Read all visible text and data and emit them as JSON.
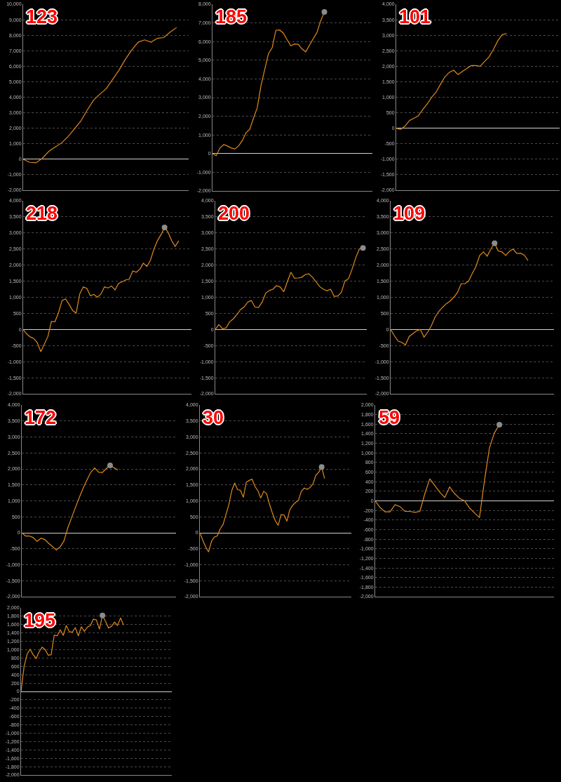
{
  "chart_data": [
    {
      "type": "line",
      "title": "123",
      "grid": "y",
      "tick_labels": "y",
      "ylim": [
        -2000,
        10000
      ],
      "yticks": [
        {
          "value": -2000,
          "label": "-2,000"
        },
        {
          "value": -1000,
          "label": "-1,000"
        },
        0,
        {
          "value": 1000,
          "label": "1,000"
        },
        {
          "value": 2000,
          "label": "2,000"
        },
        {
          "value": 3000,
          "label": "3,000"
        },
        {
          "value": 4000,
          "label": "4,000"
        },
        {
          "value": 5000,
          "label": "5,000"
        },
        {
          "value": 6000,
          "label": "6,000"
        },
        {
          "value": 7000,
          "label": "7,000"
        },
        {
          "value": 8000,
          "label": "8,000"
        },
        {
          "value": 9000,
          "label": "9,000"
        },
        {
          "value": 10000,
          "label": "10,000"
        }
      ],
      "categories": [
        null,
        null,
        null,
        null,
        null,
        null,
        null,
        null,
        null,
        null,
        null,
        null,
        null,
        null,
        null,
        null,
        null,
        null,
        null,
        null,
        null,
        null,
        null,
        null,
        null,
        null,
        null
      ],
      "series": [
        {
          "color": "#e08a1e",
          "values": [
            0,
            -200,
            -230,
            60,
            500,
            780,
            1050,
            1450,
            1950,
            2450,
            3150,
            3800,
            4200,
            4550,
            5150,
            5750,
            6450,
            7050,
            7550,
            7700,
            7550,
            7800,
            7850,
            8200,
            8500,
            null,
            null
          ]
        }
      ]
    },
    {
      "type": "line",
      "title": "185",
      "grid": "y",
      "tick_labels": "y",
      "ylim": [
        -2000,
        8000
      ],
      "yticks": [
        {
          "value": -2000,
          "label": "-2,000"
        },
        {
          "value": -1000,
          "label": "-1,000"
        },
        0,
        {
          "value": 1000,
          "label": "1,000"
        },
        {
          "value": 2000,
          "label": "2,000"
        },
        {
          "value": 3000,
          "label": "3,000"
        },
        {
          "value": 4000,
          "label": "4,000"
        },
        {
          "value": 5000,
          "label": "5,000"
        },
        {
          "value": 6000,
          "label": "6,000"
        },
        {
          "value": 7000,
          "label": "7,000"
        },
        {
          "value": 8000,
          "label": "8,000"
        }
      ],
      "categories": [
        null,
        null,
        null,
        null,
        null,
        null,
        null,
        null,
        null,
        null,
        null,
        null,
        null,
        null,
        null,
        null,
        null,
        null,
        null,
        null,
        null,
        null,
        null,
        null,
        null,
        null,
        null,
        null,
        null,
        null,
        null,
        null,
        null,
        null,
        null,
        null,
        null,
        null,
        null,
        null,
        null,
        null,
        null,
        null,
        null
      ],
      "series": [
        {
          "color": "#e08a1e",
          "values": [
            0,
            -110,
            300,
            480,
            410,
            300,
            250,
            410,
            700,
            1120,
            1300,
            1900,
            2450,
            3630,
            4500,
            5350,
            5670,
            6600,
            6620,
            6450,
            6100,
            5770,
            5870,
            5850,
            5600,
            5450,
            5800,
            6150,
            6480,
            7100,
            7590,
            null,
            null,
            null,
            null,
            null,
            null,
            null,
            null,
            null,
            null,
            null,
            null,
            null,
            null
          ]
        },
        {
          "type": "scatter",
          "color": "#8c8c8c",
          "values": [
            null,
            null,
            null,
            null,
            null,
            null,
            null,
            null,
            null,
            null,
            null,
            null,
            null,
            null,
            null,
            null,
            null,
            null,
            null,
            null,
            null,
            null,
            null,
            null,
            null,
            null,
            null,
            null,
            null,
            null,
            7590,
            null,
            null,
            null,
            null,
            null,
            null,
            null,
            null,
            null,
            null,
            null,
            null,
            null,
            null
          ]
        }
      ]
    },
    {
      "type": "line",
      "title": "101",
      "grid": "y",
      "tick_labels": "y",
      "ylim": [
        -2000,
        4000
      ],
      "yticks": [
        {
          "value": -2000,
          "label": "-2,000"
        },
        {
          "value": -1500,
          "label": "-1,500"
        },
        {
          "value": -1000,
          "label": "-1,000"
        },
        -500,
        0,
        500,
        {
          "value": 1000,
          "label": "1,000"
        },
        {
          "value": 1500,
          "label": "1,500"
        },
        {
          "value": 2000,
          "label": "2,000"
        },
        {
          "value": 2500,
          "label": "2,500"
        },
        {
          "value": 3000,
          "label": "3,000"
        },
        {
          "value": 3500,
          "label": "3,500"
        },
        {
          "value": 4000,
          "label": "4,000"
        }
      ],
      "categories": [
        null,
        null,
        null,
        null,
        null,
        null,
        null,
        null,
        null,
        null,
        null,
        null,
        null,
        null,
        null,
        null,
        null,
        null,
        null,
        null,
        null,
        null,
        null,
        null,
        null,
        null,
        null,
        null,
        null,
        null,
        null,
        null,
        null,
        null,
        null,
        null,
        null,
        null
      ],
      "series": [
        {
          "color": "#e08a1e",
          "values": [
            0,
            -40,
            70,
            250,
            320,
            400,
            600,
            780,
            990,
            1160,
            1410,
            1650,
            1800,
            1870,
            1730,
            1830,
            1930,
            2020,
            2020,
            2000,
            2150,
            2300,
            2540,
            2820,
            3020,
            3050,
            null,
            null,
            null,
            null,
            null,
            null,
            null,
            null,
            null,
            null,
            null,
            null
          ]
        }
      ]
    },
    {
      "type": "line",
      "title": "218",
      "grid": "y",
      "tick_labels": "y",
      "ylim": [
        -2000,
        4000
      ],
      "yticks": [
        {
          "value": -2000,
          "label": "-2,000"
        },
        {
          "value": -1500,
          "label": "-1,500"
        },
        {
          "value": -1000,
          "label": "-1,000"
        },
        -500,
        0,
        500,
        {
          "value": 1000,
          "label": "1,000"
        },
        {
          "value": 1500,
          "label": "1,500"
        },
        {
          "value": 2000,
          "label": "2,000"
        },
        {
          "value": 2500,
          "label": "2,500"
        },
        {
          "value": 3000,
          "label": "3,000"
        },
        {
          "value": 3500,
          "label": "3,500"
        },
        {
          "value": 4000,
          "label": "4,000"
        }
      ],
      "categories": [
        null,
        null,
        null,
        null,
        null,
        null,
        null,
        null,
        null,
        null,
        null,
        null,
        null,
        null,
        null,
        null,
        null,
        null,
        null,
        null,
        null,
        null,
        null,
        null,
        null,
        null,
        null,
        null,
        null,
        null,
        null,
        null,
        null,
        null,
        null,
        null,
        null,
        null,
        null,
        null,
        null,
        null,
        null,
        null,
        null,
        null,
        null,
        null,
        null
      ],
      "series": [
        {
          "color": "#e08a1e",
          "values": [
            0,
            -140,
            -230,
            -280,
            -410,
            -690,
            -450,
            -220,
            250,
            240,
            520,
            900,
            950,
            780,
            590,
            510,
            1100,
            1320,
            1280,
            1050,
            1090,
            1000,
            1100,
            1320,
            1290,
            1350,
            1230,
            1430,
            1480,
            1540,
            1560,
            1820,
            1780,
            1870,
            2060,
            1960,
            2150,
            2500,
            2760,
            2950,
            3170,
            3020,
            2760,
            2580,
            2760,
            null,
            null,
            null,
            null
          ]
        },
        {
          "type": "scatter",
          "color": "#8c8c8c",
          "values": [
            null,
            null,
            null,
            null,
            null,
            null,
            null,
            null,
            null,
            null,
            null,
            null,
            null,
            null,
            null,
            null,
            null,
            null,
            null,
            null,
            null,
            null,
            null,
            null,
            null,
            null,
            null,
            null,
            null,
            null,
            null,
            null,
            null,
            null,
            null,
            null,
            null,
            null,
            null,
            null,
            3170,
            null,
            null,
            null,
            null,
            null,
            null,
            null,
            null
          ]
        }
      ]
    },
    {
      "type": "line",
      "title": "200",
      "grid": "y",
      "tick_labels": "y",
      "ylim": [
        -2000,
        4000
      ],
      "yticks": [
        {
          "value": -2000,
          "label": "-2,000"
        },
        {
          "value": -1500,
          "label": "-1,500"
        },
        {
          "value": -1000,
          "label": "-1,000"
        },
        -500,
        0,
        500,
        {
          "value": 1000,
          "label": "1,000"
        },
        {
          "value": 1500,
          "label": "1,500"
        },
        {
          "value": 2000,
          "label": "2,000"
        },
        {
          "value": 2500,
          "label": "2,500"
        },
        {
          "value": 3000,
          "label": "3,000"
        },
        {
          "value": 3500,
          "label": "3,500"
        },
        {
          "value": 4000,
          "label": "4,000"
        }
      ],
      "categories": [
        null,
        null,
        null,
        null,
        null,
        null,
        null,
        null,
        null,
        null,
        null,
        null,
        null,
        null,
        null,
        null,
        null,
        null,
        null,
        null,
        null,
        null,
        null,
        null,
        null,
        null,
        null,
        null,
        null,
        null,
        null,
        null,
        null,
        null,
        null,
        null,
        null,
        null,
        null,
        null,
        null,
        null,
        null,
        null,
        null
      ],
      "series": [
        {
          "color": "#e08a1e",
          "values": [
            0,
            150,
            20,
            50,
            240,
            330,
            460,
            620,
            700,
            850,
            900,
            700,
            680,
            850,
            1130,
            1210,
            1250,
            1360,
            1320,
            1170,
            1480,
            1780,
            1590,
            1600,
            1620,
            1710,
            1730,
            1620,
            1480,
            1330,
            1250,
            1200,
            1250,
            1030,
            1040,
            1150,
            1510,
            1580,
            1880,
            2230,
            2500,
            2530,
            null,
            null,
            null
          ]
        },
        {
          "type": "scatter",
          "color": "#8c8c8c",
          "values": [
            null,
            null,
            null,
            null,
            null,
            null,
            null,
            null,
            null,
            null,
            null,
            null,
            null,
            null,
            null,
            null,
            null,
            null,
            null,
            null,
            null,
            null,
            null,
            null,
            null,
            null,
            null,
            null,
            null,
            null,
            null,
            null,
            null,
            null,
            null,
            null,
            null,
            null,
            null,
            null,
            null,
            2530,
            null,
            null,
            null
          ]
        }
      ]
    },
    {
      "type": "line",
      "title": "109",
      "grid": "y",
      "tick_labels": "y",
      "ylim": [
        -2000,
        4000
      ],
      "yticks": [
        {
          "value": -2000,
          "label": "-2,000"
        },
        {
          "value": -1500,
          "label": "-1,500"
        },
        {
          "value": -1000,
          "label": "-1,000"
        },
        -500,
        0,
        500,
        {
          "value": 1000,
          "label": "1,000"
        },
        {
          "value": 1500,
          "label": "1,500"
        },
        {
          "value": 2000,
          "label": "2,000"
        },
        {
          "value": 2500,
          "label": "2,500"
        },
        {
          "value": 3000,
          "label": "3,000"
        },
        {
          "value": 3500,
          "label": "3,500"
        },
        {
          "value": 4000,
          "label": "4,000"
        }
      ],
      "categories": [
        null,
        null,
        null,
        null,
        null,
        null,
        null,
        null,
        null,
        null,
        null,
        null,
        null,
        null,
        null,
        null,
        null,
        null,
        null,
        null,
        null,
        null,
        null,
        null,
        null,
        null,
        null,
        null,
        null,
        null,
        null,
        null,
        null,
        null,
        null,
        null,
        null,
        null,
        null,
        null,
        null,
        null,
        null,
        null,
        null
      ],
      "series": [
        {
          "color": "#e08a1e",
          "values": [
            0,
            -190,
            -360,
            -400,
            -480,
            -220,
            -130,
            -40,
            0,
            -240,
            -80,
            120,
            390,
            560,
            690,
            800,
            880,
            1000,
            1150,
            1420,
            1420,
            1500,
            1740,
            1960,
            2300,
            2410,
            2280,
            2500,
            2680,
            2440,
            2410,
            2300,
            2430,
            2500,
            2360,
            2370,
            2310,
            2140,
            null,
            null,
            null,
            null,
            null,
            null,
            null
          ]
        },
        {
          "type": "scatter",
          "color": "#8c8c8c",
          "values": [
            null,
            null,
            null,
            null,
            null,
            null,
            null,
            null,
            null,
            null,
            null,
            null,
            null,
            null,
            null,
            null,
            null,
            null,
            null,
            null,
            null,
            null,
            null,
            null,
            null,
            null,
            null,
            null,
            2680,
            null,
            null,
            null,
            null,
            null,
            null,
            null,
            null,
            null,
            null,
            null,
            null,
            null,
            null,
            null,
            null
          ]
        }
      ]
    },
    {
      "type": "line",
      "title": "172",
      "grid": "y",
      "tick_labels": "y",
      "ylim": [
        -2000,
        4000
      ],
      "yticks": [
        {
          "value": -2000,
          "label": "-2,000"
        },
        {
          "value": -1500,
          "label": "-1,500"
        },
        {
          "value": -1000,
          "label": "-1,000"
        },
        -500,
        0,
        500,
        {
          "value": 1000,
          "label": "1,000"
        },
        {
          "value": 1500,
          "label": "1,500"
        },
        {
          "value": 2000,
          "label": "2,000"
        },
        {
          "value": 2500,
          "label": "2,500"
        },
        {
          "value": 3000,
          "label": "3,000"
        },
        {
          "value": 3500,
          "label": "3,500"
        },
        {
          "value": 4000,
          "label": "4,000"
        }
      ],
      "categories": [
        null,
        null,
        null,
        null,
        null,
        null,
        null,
        null,
        null,
        null,
        null,
        null,
        null,
        null,
        null,
        null,
        null,
        null,
        null,
        null,
        null,
        null,
        null,
        null,
        null,
        null,
        null,
        null,
        null,
        null,
        null,
        null,
        null,
        null,
        null,
        null,
        null,
        null,
        null,
        null,
        null,
        null,
        null,
        null,
        null
      ],
      "series": [
        {
          "color": "#e08a1e",
          "values": [
            0,
            -100,
            -100,
            -150,
            -270,
            -170,
            -210,
            -330,
            -430,
            -540,
            -440,
            -250,
            160,
            480,
            800,
            1110,
            1400,
            1660,
            1900,
            2030,
            1900,
            1890,
            2010,
            2110,
            2040,
            1970,
            null,
            null,
            null,
            null,
            null,
            null,
            null,
            null,
            null,
            null,
            null,
            null,
            null,
            null,
            null,
            null,
            null,
            null,
            null
          ]
        },
        {
          "type": "scatter",
          "color": "#8c8c8c",
          "values": [
            null,
            null,
            null,
            null,
            null,
            null,
            null,
            null,
            null,
            null,
            null,
            null,
            null,
            null,
            null,
            null,
            null,
            null,
            null,
            null,
            null,
            null,
            null,
            2110,
            null,
            null,
            null,
            null,
            null,
            null,
            null,
            null,
            null,
            null,
            null,
            null,
            null,
            null,
            null,
            null,
            null,
            null,
            null,
            null,
            null
          ]
        }
      ]
    },
    {
      "type": "line",
      "title": "30",
      "grid": "y",
      "tick_labels": "y",
      "ylim": [
        -2000,
        4000
      ],
      "yticks": [
        {
          "value": -2000,
          "label": "-2,000"
        },
        {
          "value": -1500,
          "label": "-1,500"
        },
        {
          "value": -1000,
          "label": "-1,000"
        },
        -500,
        0,
        500,
        {
          "value": 1000,
          "label": "1,000"
        },
        {
          "value": 1500,
          "label": "1,500"
        },
        {
          "value": 2000,
          "label": "2,000"
        },
        {
          "value": 2500,
          "label": "2,500"
        },
        {
          "value": 3000,
          "label": "3,000"
        },
        {
          "value": 3500,
          "label": "3,500"
        },
        {
          "value": 4000,
          "label": "4,000"
        }
      ],
      "categories": [
        null,
        null,
        null,
        null,
        null,
        null,
        null,
        null,
        null,
        null,
        null,
        null,
        null,
        null,
        null,
        null,
        null,
        null,
        null,
        null,
        null,
        null,
        null,
        null,
        null,
        null,
        null,
        null,
        null,
        null,
        null,
        null,
        null,
        null,
        null,
        null,
        null,
        null,
        null,
        null,
        null,
        null,
        null,
        null,
        null,
        null,
        null,
        null,
        null,
        null,
        null,
        null,
        null,
        null,
        null,
        null,
        null,
        null,
        null,
        null
      ],
      "series": [
        {
          "color": "#e08a1e",
          "values": [
            0,
            -230,
            -440,
            -600,
            -270,
            -130,
            -100,
            120,
            260,
            570,
            880,
            1320,
            1560,
            1350,
            1330,
            1110,
            1580,
            1640,
            1680,
            1450,
            1320,
            1090,
            1300,
            1230,
            900,
            620,
            380,
            230,
            570,
            560,
            360,
            720,
            860,
            950,
            1020,
            1300,
            1400,
            1360,
            1420,
            1530,
            1800,
            1900,
            2060,
            1700,
            null,
            null,
            null,
            null,
            null,
            null,
            null,
            null,
            null,
            null,
            null,
            null,
            null,
            null,
            null,
            null
          ]
        },
        {
          "type": "scatter",
          "color": "#8c8c8c",
          "values": [
            null,
            null,
            null,
            null,
            null,
            null,
            null,
            null,
            null,
            null,
            null,
            null,
            null,
            null,
            null,
            null,
            null,
            null,
            null,
            null,
            null,
            null,
            null,
            null,
            null,
            null,
            null,
            null,
            null,
            null,
            null,
            null,
            null,
            null,
            null,
            null,
            null,
            null,
            null,
            null,
            null,
            null,
            2060,
            null,
            null,
            null,
            null,
            null,
            null,
            null,
            null,
            null,
            null,
            null,
            null,
            null,
            null,
            null,
            null,
            null
          ]
        }
      ]
    },
    {
      "type": "line",
      "title": "59",
      "grid": "y",
      "tick_labels": "y",
      "ylim": [
        -2000,
        2000
      ],
      "yticks": [
        {
          "value": -2000,
          "label": "-2,000"
        },
        {
          "value": -1800,
          "label": "-1,800"
        },
        {
          "value": -1600,
          "label": "-1,600"
        },
        {
          "value": -1400,
          "label": "-1,400"
        },
        {
          "value": -1200,
          "label": "-1,200"
        },
        {
          "value": -1000,
          "label": "-1,000"
        },
        -800,
        -600,
        -400,
        -200,
        0,
        200,
        400,
        600,
        800,
        {
          "value": 1000,
          "label": "1,000"
        },
        {
          "value": 1200,
          "label": "1,200"
        },
        {
          "value": 1400,
          "label": "1,400"
        },
        {
          "value": 1600,
          "label": "1,600"
        },
        {
          "value": 1800,
          "label": "1,800"
        },
        {
          "value": 2000,
          "label": "2,000"
        }
      ],
      "categories": [
        null,
        null,
        null,
        null,
        null,
        null,
        null,
        null,
        null,
        null,
        null,
        null,
        null,
        null,
        null,
        null,
        null,
        null,
        null,
        null,
        null,
        null,
        null,
        null,
        null,
        null,
        null,
        null,
        null,
        null,
        null,
        null,
        null,
        null,
        null,
        null,
        null
      ],
      "series": [
        {
          "color": "#e08a1e",
          "values": [
            0,
            -140,
            -230,
            -230,
            -80,
            -120,
            -220,
            -220,
            -240,
            -220,
            150,
            460,
            320,
            180,
            70,
            290,
            150,
            50,
            0,
            -150,
            -250,
            -350,
            420,
            1100,
            1420,
            1590,
            null,
            null,
            null,
            null,
            null,
            null,
            null,
            null,
            null,
            null,
            null
          ]
        },
        {
          "type": "scatter",
          "color": "#8c8c8c",
          "values": [
            null,
            null,
            null,
            null,
            null,
            null,
            null,
            null,
            null,
            null,
            null,
            null,
            null,
            null,
            null,
            null,
            null,
            null,
            null,
            null,
            null,
            null,
            null,
            null,
            null,
            1590,
            null,
            null,
            null,
            null,
            null,
            null,
            null,
            null,
            null,
            null,
            null
          ]
        }
      ]
    },
    {
      "type": "line",
      "title": "195",
      "grid": "y",
      "tick_labels": "y",
      "ylim": [
        -2000,
        2000
      ],
      "yticks": [
        {
          "value": -2000,
          "label": "-2,000"
        },
        {
          "value": -1800,
          "label": "-1,800"
        },
        {
          "value": -1600,
          "label": "-1,600"
        },
        {
          "value": -1400,
          "label": "-1,400"
        },
        {
          "value": -1200,
          "label": "-1,200"
        },
        {
          "value": -1000,
          "label": "-1,000"
        },
        -800,
        -600,
        -400,
        -200,
        0,
        200,
        400,
        600,
        800,
        {
          "value": 1000,
          "label": "1,000"
        },
        {
          "value": 1200,
          "label": "1,200"
        },
        {
          "value": 1400,
          "label": "1,400"
        },
        {
          "value": 1600,
          "label": "1,600"
        },
        {
          "value": 1800,
          "label": "1,800"
        },
        {
          "value": 2000,
          "label": "2,000"
        }
      ],
      "categories": [
        null,
        null,
        null,
        null,
        null,
        null,
        null,
        null,
        null,
        null,
        null,
        null,
        null,
        null,
        null,
        null,
        null,
        null,
        null,
        null,
        null,
        null,
        null,
        null,
        null,
        null,
        null,
        null,
        null,
        null,
        null,
        null,
        null,
        null,
        null,
        null,
        null,
        null,
        null,
        null,
        null,
        null,
        null,
        null,
        null,
        null,
        null,
        null,
        null,
        null,
        null
      ],
      "series": [
        {
          "color": "#e08a1e",
          "values": [
            0,
            590,
            890,
            1010,
            880,
            790,
            950,
            1060,
            1000,
            870,
            880,
            1350,
            1330,
            1480,
            1340,
            1580,
            1430,
            1420,
            1530,
            1330,
            1550,
            1440,
            1540,
            1580,
            1730,
            1710,
            1490,
            1820,
            1680,
            1520,
            1560,
            1660,
            1580,
            1760,
            1590,
            null,
            null,
            null,
            null,
            null,
            null,
            null,
            null,
            null,
            null,
            null,
            null,
            null,
            null,
            null,
            null
          ]
        },
        {
          "type": "scatter",
          "color": "#8c8c8c",
          "values": [
            null,
            null,
            null,
            null,
            null,
            null,
            null,
            null,
            null,
            null,
            null,
            null,
            null,
            null,
            null,
            null,
            null,
            null,
            null,
            null,
            null,
            null,
            null,
            null,
            null,
            null,
            null,
            1820,
            null,
            null,
            null,
            null,
            null,
            null,
            null,
            null,
            null,
            null,
            null,
            null,
            null,
            null,
            null,
            null,
            null,
            null,
            null,
            null,
            null,
            null,
            null
          ]
        }
      ]
    }
  ]
}
